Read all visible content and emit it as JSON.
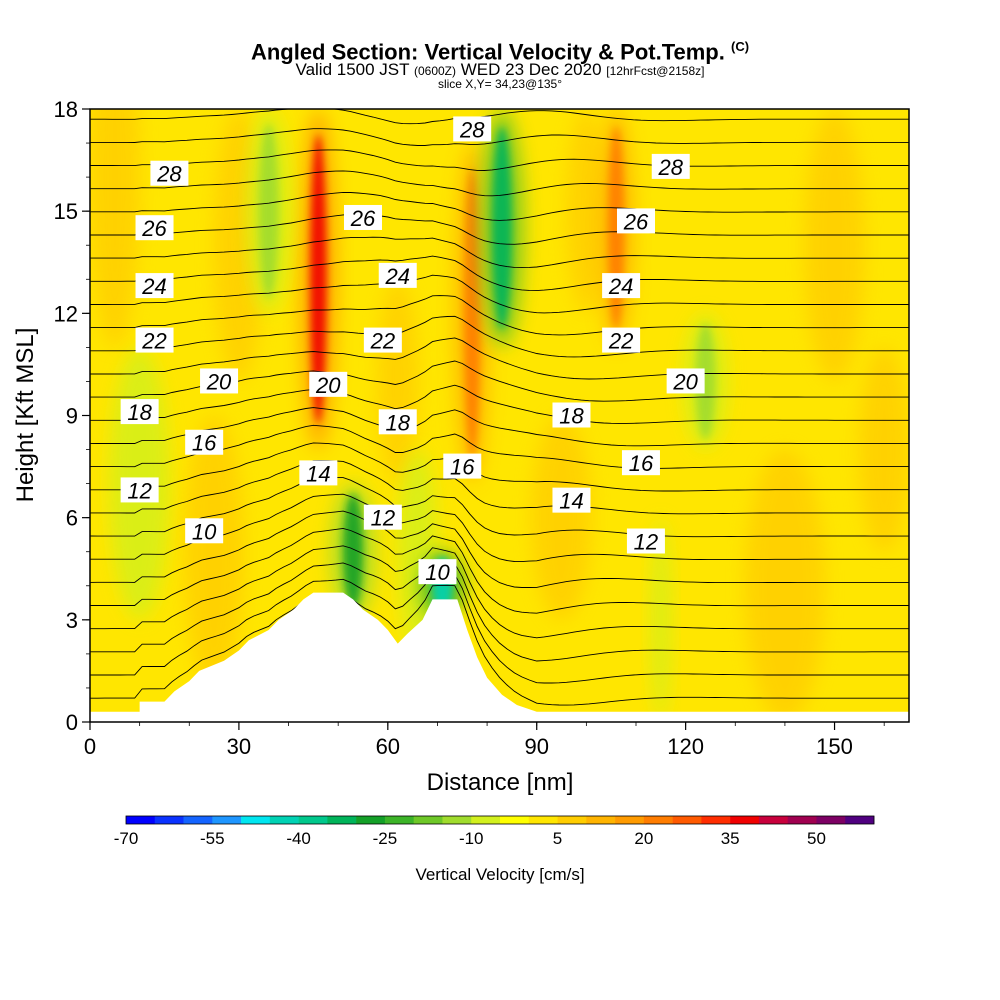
{
  "header": {
    "title": "Angled Section: Vertical Velocity & Pot.Temp.",
    "title_tag": "(C)",
    "valid_prefix": "Valid 1500 JST",
    "valid_zulu": "(0600Z)",
    "valid_date": "WED 23 Dec 2020",
    "forecast": "[12hrFcst@2158z]",
    "slice": "slice X,Y= 34,23@135°"
  },
  "chart_data": {
    "type": "heatmap",
    "xlabel": "Distance [nm]",
    "ylabel": "Height [Kft MSL]",
    "xlim": [
      0,
      165
    ],
    "ylim": [
      0,
      18
    ],
    "x_ticks": [
      "0",
      "30",
      "60",
      "90",
      "120",
      "150"
    ],
    "x_tick_values": [
      0,
      30,
      60,
      90,
      120,
      150
    ],
    "y_ticks": [
      "0",
      "3",
      "6",
      "9",
      "12",
      "15",
      "18"
    ],
    "y_tick_values": [
      0,
      3,
      6,
      9,
      12,
      15,
      18
    ],
    "terrain_profile_kft": [
      [
        0,
        0.3
      ],
      [
        10,
        0.3
      ],
      [
        10,
        0.6
      ],
      [
        15,
        0.6
      ],
      [
        17,
        0.9
      ],
      [
        20,
        1.2
      ],
      [
        22,
        1.5
      ],
      [
        27,
        1.8
      ],
      [
        30,
        2.1
      ],
      [
        32,
        2.4
      ],
      [
        36,
        2.7
      ],
      [
        38,
        3.0
      ],
      [
        41,
        3.3
      ],
      [
        43,
        3.6
      ],
      [
        45,
        3.8
      ],
      [
        51,
        3.8
      ],
      [
        53,
        3.6
      ],
      [
        55,
        3.3
      ],
      [
        58,
        3.0
      ],
      [
        60,
        2.7
      ],
      [
        62,
        2.3
      ],
      [
        64,
        2.6
      ],
      [
        67,
        3.0
      ],
      [
        69,
        3.6
      ],
      [
        74,
        3.6
      ],
      [
        76,
        2.7
      ],
      [
        78,
        1.9
      ],
      [
        80,
        1.3
      ],
      [
        83,
        0.8
      ],
      [
        86,
        0.5
      ],
      [
        90,
        0.3
      ],
      [
        165,
        0.3
      ]
    ],
    "theta_contours": {
      "units": "°C",
      "levels": [
        10,
        12,
        14,
        16,
        18,
        20,
        22,
        24,
        26,
        28
      ],
      "labels": [
        {
          "text": "28",
          "x": 16,
          "y": 16.1
        },
        {
          "text": "28",
          "x": 77,
          "y": 17.4
        },
        {
          "text": "28",
          "x": 117,
          "y": 16.3
        },
        {
          "text": "26",
          "x": 13,
          "y": 14.5
        },
        {
          "text": "26",
          "x": 55,
          "y": 14.8
        },
        {
          "text": "26",
          "x": 110,
          "y": 14.7
        },
        {
          "text": "24",
          "x": 13,
          "y": 12.8
        },
        {
          "text": "24",
          "x": 62,
          "y": 13.1
        },
        {
          "text": "24",
          "x": 107,
          "y": 12.8
        },
        {
          "text": "22",
          "x": 13,
          "y": 11.2
        },
        {
          "text": "22",
          "x": 59,
          "y": 11.2
        },
        {
          "text": "22",
          "x": 107,
          "y": 11.2
        },
        {
          "text": "20",
          "x": 26,
          "y": 10.0
        },
        {
          "text": "20",
          "x": 48,
          "y": 9.9
        },
        {
          "text": "20",
          "x": 120,
          "y": 10.0
        },
        {
          "text": "18",
          "x": 10,
          "y": 9.1
        },
        {
          "text": "18",
          "x": 62,
          "y": 8.8
        },
        {
          "text": "18",
          "x": 97,
          "y": 9.0
        },
        {
          "text": "16",
          "x": 23,
          "y": 8.2
        },
        {
          "text": "16",
          "x": 75,
          "y": 7.5
        },
        {
          "text": "16",
          "x": 111,
          "y": 7.6
        },
        {
          "text": "14",
          "x": 46,
          "y": 7.3
        },
        {
          "text": "14",
          "x": 97,
          "y": 6.5
        },
        {
          "text": "12",
          "x": 10,
          "y": 6.8
        },
        {
          "text": "12",
          "x": 59,
          "y": 6.0
        },
        {
          "text": "12",
          "x": 112,
          "y": 5.3
        },
        {
          "text": "10",
          "x": 23,
          "y": 5.6
        },
        {
          "text": "10",
          "x": 70,
          "y": 4.4
        }
      ]
    },
    "vertical_velocity_features": [
      {
        "kind": "updraft",
        "x": 46,
        "y_range": [
          8,
          18
        ],
        "value": 35
      },
      {
        "kind": "updraft",
        "x": 77,
        "y_range": [
          7,
          17
        ],
        "value": 20
      },
      {
        "kind": "updraft",
        "x": 106,
        "y_range": [
          11,
          18
        ],
        "value": 20
      },
      {
        "kind": "downdraft",
        "x": 83,
        "y_range": [
          11,
          18
        ],
        "value": -35
      },
      {
        "kind": "downdraft",
        "x": 71,
        "y_range": [
          3,
          5
        ],
        "value": -45
      },
      {
        "kind": "downdraft",
        "x": 53,
        "y_range": [
          3,
          7
        ],
        "value": -30
      },
      {
        "kind": "downdraft",
        "x": 36,
        "y_range": [
          12,
          18
        ],
        "value": -15
      },
      {
        "kind": "downdraft",
        "x": 124,
        "y_range": [
          8,
          12
        ],
        "value": -15
      }
    ],
    "colorbar": {
      "title": "Vertical Velocity [cm/s]",
      "tick_labels": [
        "-70",
        "-55",
        "-40",
        "-25",
        "-10",
        "5",
        "20",
        "35",
        "50"
      ],
      "levels": [
        -70,
        -65,
        -60,
        -55,
        -50,
        -45,
        -40,
        -35,
        -30,
        -25,
        -20,
        -15,
        -10,
        -5,
        0,
        5,
        10,
        15,
        20,
        25,
        30,
        35,
        40,
        45,
        50,
        55
      ],
      "colors": [
        "#0000ff",
        "#0a32ff",
        "#1464ff",
        "#1e96ff",
        "#00e6f0",
        "#00d2b4",
        "#00c88c",
        "#00b45a",
        "#14a028",
        "#3cb428",
        "#6ec828",
        "#a0dc2d",
        "#d2f01e",
        "#ffff00",
        "#ffe600",
        "#ffcd00",
        "#ffb400",
        "#ff9b00",
        "#ff7d00",
        "#ff5a00",
        "#ff2d00",
        "#f00000",
        "#c8003c",
        "#a00050",
        "#7d0064",
        "#500080"
      ]
    }
  }
}
